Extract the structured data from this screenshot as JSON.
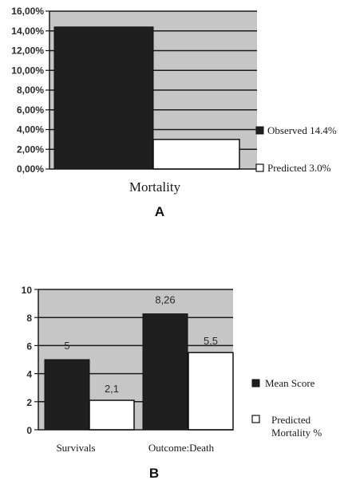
{
  "chart_data": [
    {
      "type": "bar",
      "categories": [
        "Mortality"
      ],
      "series": [
        {
          "name": "Observed 14.4%",
          "values": [
            14.4
          ]
        },
        {
          "name": "Predicted 3.0%",
          "values": [
            3.0
          ]
        }
      ],
      "ylim": [
        0,
        16
      ],
      "yticks": [
        "0,00%",
        "2,00%",
        "4,00%",
        "6,00%",
        "8,00%",
        "10,00%",
        "12,00%",
        "14,00%",
        "16,00%"
      ],
      "xlabel": "Mortality",
      "panel_label": "A",
      "legend_placement": "right",
      "grid": true,
      "colors": {
        "observed": "#1f1f1f",
        "predicted": "#ffffff",
        "plot_bg": "#c6c6c6"
      }
    },
    {
      "type": "bar",
      "categories": [
        "Survivals",
        "Outcome:Death"
      ],
      "series": [
        {
          "name": "Mean Score",
          "values": [
            5,
            8.26
          ]
        },
        {
          "name": "Predicted Mortality %",
          "values": [
            2.1,
            5.5
          ]
        }
      ],
      "data_labels": [
        [
          "5",
          "2,1"
        ],
        [
          "8,26",
          "5,5"
        ]
      ],
      "ylim": [
        0,
        10
      ],
      "yticks": [
        "0",
        "2",
        "4",
        "6",
        "8",
        "10"
      ],
      "panel_label": "B",
      "legend_placement": "right",
      "grid": true,
      "legend_lines": {
        "mean": [
          "Mean Score"
        ],
        "predicted": [
          "Predicted",
          "Mortality %"
        ]
      },
      "colors": {
        "observed": "#1f1f1f",
        "predicted": "#ffffff",
        "plot_bg": "#c6c6c6"
      }
    }
  ]
}
